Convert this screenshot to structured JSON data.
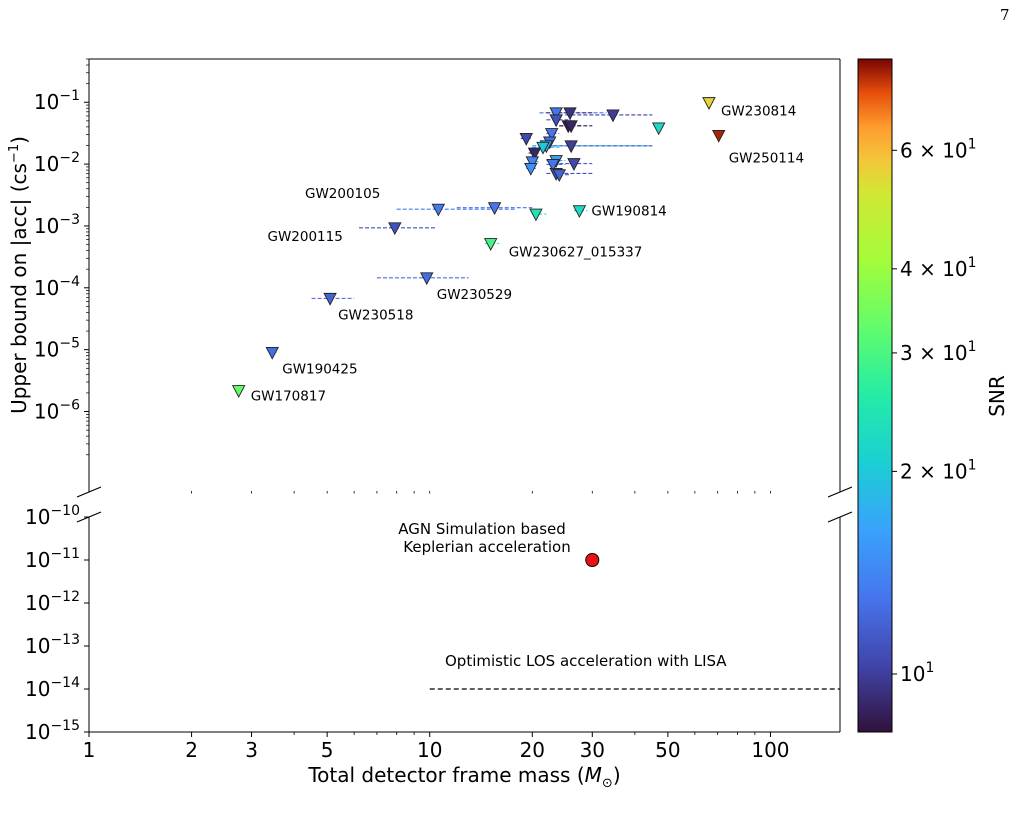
{
  "page_number": "7",
  "chart_data": {
    "type": "scatter",
    "xscale": "log",
    "yscale": "log",
    "broken_y_axis": true,
    "xlabel": "Total detector frame mass ($M_\\odot$)",
    "ylabel": "Upper bound on |acc| (cs$^{-1}$)",
    "xlim": [
      1,
      160
    ],
    "x_ticks": [
      {
        "v": 1,
        "label": "1"
      },
      {
        "v": 2,
        "label": "2"
      },
      {
        "v": 3,
        "label": "3"
      },
      {
        "v": 5,
        "label": "5"
      },
      {
        "v": 10,
        "label": "10"
      },
      {
        "v": 20,
        "label": "20"
      },
      {
        "v": 30,
        "label": "30"
      },
      {
        "v": 50,
        "label": "50"
      },
      {
        "v": 100,
        "label": "100"
      }
    ],
    "upper_panel": {
      "ylim": [
        5e-08,
        0.5
      ],
      "y_ticks": [
        {
          "exp": -1,
          "label": "10"
        },
        {
          "exp": -2,
          "label": "10"
        },
        {
          "exp": -3,
          "label": "10"
        },
        {
          "exp": -4,
          "label": "10"
        },
        {
          "exp": -5,
          "label": "10"
        },
        {
          "exp": -6,
          "label": "10"
        }
      ],
      "y_tick_exponents": [
        "−1",
        "−2",
        "−3",
        "−4",
        "−5",
        "−6"
      ],
      "marker": "downward-triangle",
      "events": [
        {
          "label": "GW230814",
          "mass": 66,
          "acc": 0.095,
          "snr": 55,
          "xerr": [
            65,
            68
          ]
        },
        {
          "label": "GW250114",
          "mass": 70.5,
          "acc": 0.028,
          "snr": 78,
          "xerr": [
            70,
            71
          ]
        },
        {
          "label": "GW200105",
          "mass": 10.6,
          "acc": 0.0018,
          "snr": 13.5,
          "xerr": [
            8,
            18
          ]
        },
        {
          "label": "GW200115",
          "mass": 7.9,
          "acc": 0.0009,
          "snr": 11,
          "xerr": [
            6.2,
            10.5
          ]
        },
        {
          "label": "GW190814",
          "mass": 27.5,
          "acc": 0.0017,
          "snr": 22,
          "xerr": [
            26.5,
            29
          ]
        },
        {
          "label": "GW230627_015337",
          "mass": 15.1,
          "acc": 0.0005,
          "snr": 29,
          "xerr": [
            14.5,
            16
          ]
        },
        {
          "label": "GW230529",
          "mass": 9.8,
          "acc": 0.00014,
          "snr": 12.5,
          "xerr": [
            7,
            13
          ]
        },
        {
          "label": "GW230518",
          "mass": 5.1,
          "acc": 6.5e-05,
          "snr": 12,
          "xerr": [
            4.5,
            6
          ]
        },
        {
          "label": "GW190425",
          "mass": 3.45,
          "acc": 8.7e-06,
          "snr": 12.5,
          "xerr": [
            3.4,
            3.55
          ]
        },
        {
          "label": "GW170817",
          "mass": 2.75,
          "acc": 2.1e-06,
          "snr": 33,
          "xerr": [
            2.72,
            2.78
          ]
        },
        {
          "label": "",
          "mass": 15.5,
          "acc": 0.0019,
          "snr": 13,
          "xerr": [
            12,
            20
          ]
        },
        {
          "label": "",
          "mass": 20.5,
          "acc": 0.0015,
          "snr": 24,
          "xerr": [
            20,
            22
          ]
        },
        {
          "label": "",
          "mass": 23.5,
          "acc": 0.065,
          "snr": 13,
          "xerr": [
            21,
            33
          ]
        },
        {
          "label": "",
          "mass": 25.8,
          "acc": 0.065,
          "snr": 9.5,
          "xerr": [
            22,
            30
          ]
        },
        {
          "label": "",
          "mass": 34.5,
          "acc": 0.06,
          "snr": 10,
          "xerr": [
            25,
            45
          ]
        },
        {
          "label": "",
          "mass": 23.5,
          "acc": 0.05,
          "snr": 11,
          "xerr": [
            22,
            26
          ]
        },
        {
          "label": "",
          "mass": 25.5,
          "acc": 0.04,
          "snr": 8.5,
          "xerr": [
            24,
            30
          ]
        },
        {
          "label": "",
          "mass": 26,
          "acc": 0.04,
          "snr": 9,
          "xerr": [
            24,
            28
          ]
        },
        {
          "label": "",
          "mass": 47,
          "acc": 0.037,
          "snr": 22,
          "xerr": [
            46,
            48
          ]
        },
        {
          "label": "",
          "mass": 22.8,
          "acc": 0.03,
          "snr": 13,
          "xerr": [
            22,
            24
          ]
        },
        {
          "label": "",
          "mass": 19.2,
          "acc": 0.025,
          "snr": 10.5,
          "xerr": [
            18.5,
            20
          ]
        },
        {
          "label": "",
          "mass": 22.5,
          "acc": 0.022,
          "snr": 12.5,
          "xerr": [
            22,
            23
          ]
        },
        {
          "label": "",
          "mass": 26,
          "acc": 0.019,
          "snr": 10,
          "xerr": [
            23,
            45
          ]
        },
        {
          "label": "",
          "mass": 22,
          "acc": 0.019,
          "snr": 17,
          "xerr": [
            20,
            45
          ]
        },
        {
          "label": "",
          "mass": 21.5,
          "acc": 0.018,
          "snr": 20,
          "xerr": [
            20,
            24
          ]
        },
        {
          "label": "",
          "mass": 20.3,
          "acc": 0.0145,
          "snr": 9,
          "xerr": [
            19.5,
            21
          ]
        },
        {
          "label": "",
          "mass": 23.5,
          "acc": 0.011,
          "snr": 16,
          "xerr": [
            22,
            25
          ]
        },
        {
          "label": "",
          "mass": 20,
          "acc": 0.0105,
          "snr": 14,
          "xerr": [
            19.5,
            21
          ]
        },
        {
          "label": "",
          "mass": 26.5,
          "acc": 0.0098,
          "snr": 10.5,
          "xerr": [
            24,
            30
          ]
        },
        {
          "label": "",
          "mass": 23,
          "acc": 0.0095,
          "snr": 13,
          "xerr": [
            22,
            25
          ]
        },
        {
          "label": "",
          "mass": 19.8,
          "acc": 0.0082,
          "snr": 15,
          "xerr": [
            19.2,
            20.5
          ]
        },
        {
          "label": "",
          "mass": 23.5,
          "acc": 0.0068,
          "snr": 11,
          "xerr": [
            22,
            30
          ]
        },
        {
          "label": "",
          "mass": 24,
          "acc": 0.0065,
          "snr": 12,
          "xerr": [
            23,
            26
          ]
        }
      ]
    },
    "lower_panel": {
      "ylim": [
        1e-15,
        1e-10
      ],
      "y_ticks": [
        {
          "exp": -10,
          "label": "10"
        },
        {
          "exp": -11,
          "label": "10"
        },
        {
          "exp": -12,
          "label": "10"
        },
        {
          "exp": -13,
          "label": "10"
        },
        {
          "exp": -14,
          "label": "10"
        },
        {
          "exp": -15,
          "label": "10"
        }
      ],
      "y_tick_exponents": [
        "−10",
        "−11",
        "−12",
        "−13",
        "−14",
        "−15"
      ],
      "agn_point": {
        "mass": 30,
        "acc": 1e-11,
        "color": "#ee1111",
        "label_line1": "AGN Simulation based",
        "label_line2": "Keplerian acceleration"
      },
      "lisa_line": {
        "acc": 1e-14,
        "x_start": 10,
        "label": "Optimistic LOS acceleration with LISA"
      }
    },
    "colorbar": {
      "label": "SNR",
      "scale": "log",
      "range": [
        8.2,
        82
      ],
      "ticks": [
        {
          "v": 60,
          "base": "6 × 10",
          "exp": "1"
        },
        {
          "v": 40,
          "base": "4 × 10",
          "exp": "1"
        },
        {
          "v": 30,
          "base": "3 × 10",
          "exp": "1"
        },
        {
          "v": 20,
          "base": "2 × 10",
          "exp": "1"
        },
        {
          "v": 10,
          "base": "10",
          "exp": "1"
        }
      ],
      "colormap": "turbo"
    }
  }
}
